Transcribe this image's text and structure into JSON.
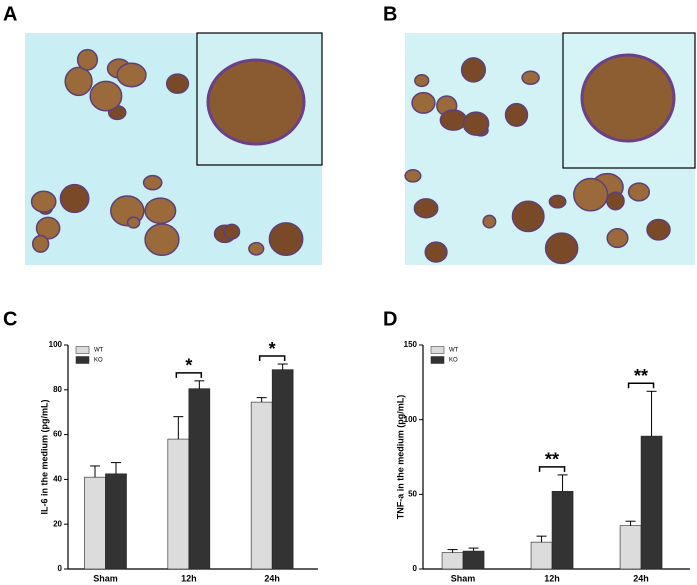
{
  "panels": [
    "A",
    "B",
    "C",
    "D"
  ],
  "chart_data": [
    {
      "type": "bar",
      "y_label": "IL-6 in the medium (pg/mL)",
      "categories": [
        "Sham",
        "12h",
        "24h"
      ],
      "series": [
        {
          "name": "WT",
          "color": "#dcdcdc",
          "values": [
            41,
            58,
            74.5
          ],
          "errors": [
            5,
            10,
            2
          ]
        },
        {
          "name": "KO",
          "color": "#333333",
          "values": [
            42.5,
            80.5,
            89
          ],
          "errors": [
            5,
            3.5,
            2.5
          ]
        }
      ],
      "significance": [
        null,
        "*",
        "*"
      ],
      "ylim": [
        0,
        100
      ],
      "yticks": [
        0,
        20,
        40,
        60,
        80,
        100
      ],
      "legend": "upper-left"
    },
    {
      "type": "bar",
      "y_label": "TNF-a  in the medium (pg/mL)",
      "categories": [
        "Sham",
        "12h",
        "24h"
      ],
      "series": [
        {
          "name": "WT",
          "color": "#dcdcdc",
          "values": [
            11,
            18,
            29
          ],
          "errors": [
            2,
            4,
            3
          ]
        },
        {
          "name": "KO",
          "color": "#333333",
          "values": [
            12,
            52,
            89
          ],
          "errors": [
            2,
            11,
            30
          ]
        }
      ],
      "significance": [
        null,
        "**",
        "**"
      ],
      "ylim": [
        0,
        150
      ],
      "yticks": [
        0,
        50,
        100,
        150
      ],
      "legend": "upper-left"
    }
  ]
}
